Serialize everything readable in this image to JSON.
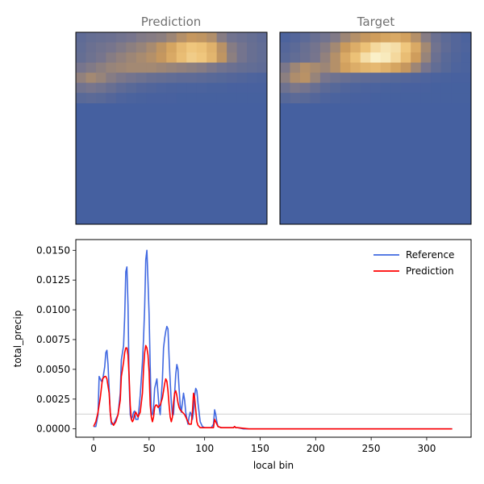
{
  "panels": [
    {
      "title": "Prediction",
      "colormap": "lajolla",
      "grid": [
        [
          0.18,
          0.22,
          0.24,
          0.26,
          0.3,
          0.34,
          0.38,
          0.4,
          0.42,
          0.48,
          0.56,
          0.62,
          0.6,
          0.55,
          0.4,
          0.3,
          0.26,
          0.22,
          0.18
        ],
        [
          0.2,
          0.26,
          0.3,
          0.34,
          0.38,
          0.42,
          0.46,
          0.52,
          0.6,
          0.7,
          0.8,
          0.86,
          0.84,
          0.76,
          0.58,
          0.4,
          0.32,
          0.24,
          0.2
        ],
        [
          0.22,
          0.28,
          0.34,
          0.4,
          0.44,
          0.48,
          0.52,
          0.56,
          0.62,
          0.72,
          0.82,
          0.88,
          0.86,
          0.78,
          0.6,
          0.42,
          0.32,
          0.24,
          0.2
        ],
        [
          0.34,
          0.38,
          0.42,
          0.46,
          0.48,
          0.5,
          0.5,
          0.5,
          0.48,
          0.46,
          0.44,
          0.42,
          0.4,
          0.36,
          0.3,
          0.26,
          0.22,
          0.2,
          0.18
        ],
        [
          0.44,
          0.5,
          0.46,
          0.4,
          0.36,
          0.32,
          0.28,
          0.24,
          0.22,
          0.2,
          0.18,
          0.18,
          0.16,
          0.14,
          0.12,
          0.1,
          0.08,
          0.06,
          0.05
        ],
        [
          0.3,
          0.34,
          0.3,
          0.24,
          0.18,
          0.14,
          0.1,
          0.08,
          0.06,
          0.05,
          0.04,
          0.04,
          0.04,
          0.03,
          0.03,
          0.02,
          0.02,
          0.02,
          0.02
        ],
        [
          0.14,
          0.16,
          0.14,
          0.1,
          0.06,
          0.04,
          0.03,
          0.02,
          0.02,
          0.02,
          0.01,
          0.01,
          0.01,
          0.01,
          0.01,
          0.01,
          0.01,
          0.01,
          0.01
        ]
      ]
    },
    {
      "title": "Target",
      "colormap": "lajolla",
      "grid": [
        [
          0.05,
          0.1,
          0.16,
          0.24,
          0.3,
          0.38,
          0.48,
          0.56,
          0.62,
          0.66,
          0.7,
          0.72,
          0.68,
          0.56,
          0.4,
          0.26,
          0.16,
          0.1,
          0.05
        ],
        [
          0.1,
          0.16,
          0.24,
          0.32,
          0.4,
          0.5,
          0.64,
          0.74,
          0.84,
          0.92,
          0.96,
          0.94,
          0.86,
          0.72,
          0.5,
          0.3,
          0.18,
          0.1,
          0.06
        ],
        [
          0.14,
          0.2,
          0.26,
          0.34,
          0.44,
          0.56,
          0.72,
          0.84,
          0.94,
          1.0,
          0.98,
          0.92,
          0.82,
          0.66,
          0.46,
          0.26,
          0.14,
          0.08,
          0.04
        ],
        [
          0.36,
          0.48,
          0.56,
          0.52,
          0.48,
          0.56,
          0.68,
          0.74,
          0.78,
          0.8,
          0.76,
          0.7,
          0.62,
          0.48,
          0.34,
          0.2,
          0.12,
          0.06,
          0.04
        ],
        [
          0.42,
          0.54,
          0.58,
          0.46,
          0.34,
          0.28,
          0.24,
          0.2,
          0.18,
          0.16,
          0.14,
          0.12,
          0.1,
          0.08,
          0.06,
          0.04,
          0.03,
          0.02,
          0.02
        ],
        [
          0.28,
          0.36,
          0.32,
          0.24,
          0.16,
          0.12,
          0.08,
          0.06,
          0.05,
          0.04,
          0.03,
          0.03,
          0.02,
          0.02,
          0.02,
          0.01,
          0.01,
          0.01,
          0.01
        ],
        [
          0.12,
          0.16,
          0.14,
          0.1,
          0.06,
          0.04,
          0.03,
          0.02,
          0.02,
          0.01,
          0.01,
          0.01,
          0.01,
          0.01,
          0.01,
          0.01,
          0.01,
          0.01,
          0.01
        ]
      ]
    }
  ],
  "chart_data": {
    "type": "line",
    "xlabel": "local bin",
    "ylabel": "total_precip",
    "xlim": [
      -16,
      340
    ],
    "ylim": [
      -0.0007,
      0.0159
    ],
    "xticks": [
      0,
      50,
      100,
      150,
      200,
      250,
      300
    ],
    "yticks": [
      0.0,
      0.0025,
      0.005,
      0.0075,
      0.01,
      0.0125,
      0.015
    ],
    "ytick_labels": [
      "0.0000",
      "0.0025",
      "0.0050",
      "0.0075",
      "0.0100",
      "0.0125",
      "0.0150"
    ],
    "reference_line_y": 0.00125,
    "legend_position": "top-right",
    "grid": false,
    "series": [
      {
        "name": "Reference",
        "color": "#4169E1",
        "x": [
          0,
          2,
          4,
          5,
          7,
          8,
          10,
          11,
          12,
          13,
          14,
          15,
          16,
          18,
          20,
          22,
          24,
          25,
          27,
          28,
          29,
          30,
          31,
          32,
          33,
          34,
          35,
          36,
          37,
          38,
          40,
          42,
          44,
          45,
          46,
          47,
          48,
          49,
          50,
          51,
          52,
          53,
          54,
          55,
          56,
          57,
          58,
          59,
          60,
          62,
          63,
          64,
          65,
          66,
          67,
          68,
          69,
          70,
          71,
          72,
          73,
          74,
          75,
          76,
          77,
          78,
          79,
          80,
          81,
          82,
          83,
          84,
          85,
          86,
          87,
          88,
          89,
          90,
          91,
          92,
          93,
          94,
          96,
          98,
          100,
          102,
          104,
          106,
          108,
          109,
          110,
          111,
          112,
          115,
          120,
          124,
          126,
          127,
          128,
          130,
          135,
          140,
          145,
          150,
          160,
          180,
          200,
          220,
          240,
          260,
          280,
          300,
          323
        ],
        "y": [
          0.0002,
          0.0002,
          0.0012,
          0.0044,
          0.004,
          0.004,
          0.0052,
          0.0064,
          0.0066,
          0.0054,
          0.0034,
          0.0014,
          0.0004,
          0.0004,
          0.0008,
          0.0012,
          0.003,
          0.0058,
          0.007,
          0.0094,
          0.0132,
          0.0136,
          0.0104,
          0.004,
          0.0012,
          0.0008,
          0.001,
          0.0014,
          0.0015,
          0.0008,
          0.0008,
          0.0028,
          0.0056,
          0.0076,
          0.0102,
          0.0142,
          0.015,
          0.0124,
          0.0096,
          0.0052,
          0.0012,
          0.0012,
          0.0018,
          0.0034,
          0.0038,
          0.0042,
          0.003,
          0.0018,
          0.0012,
          0.0042,
          0.0068,
          0.0076,
          0.0082,
          0.0086,
          0.0084,
          0.006,
          0.004,
          0.0022,
          0.0012,
          0.0012,
          0.003,
          0.0046,
          0.0054,
          0.005,
          0.0034,
          0.002,
          0.0014,
          0.0022,
          0.003,
          0.0024,
          0.0014,
          0.0008,
          0.0004,
          0.001,
          0.0014,
          0.0012,
          0.0008,
          0.0014,
          0.0028,
          0.0034,
          0.0032,
          0.0022,
          0.0006,
          0.0002,
          0.0001,
          0.0001,
          0.0001,
          0.0001,
          0.0004,
          0.0016,
          0.0012,
          0.0006,
          0.0002,
          0.0001,
          0.0001,
          0.0001,
          0.0001,
          0.0002,
          0.0001,
          0.0001,
          0.0,
          0.0,
          0.0,
          0.0,
          0.0,
          0.0,
          0.0,
          0.0,
          0.0,
          0.0,
          0.0,
          0.0,
          0.0
        ]
      },
      {
        "name": "Prediction",
        "color": "#FF0000",
        "x": [
          0,
          2,
          4,
          6,
          8,
          10,
          11,
          12,
          14,
          15,
          16,
          18,
          20,
          22,
          24,
          25,
          27,
          28,
          29,
          30,
          31,
          32,
          33,
          34,
          35,
          36,
          37,
          38,
          40,
          42,
          44,
          45,
          46,
          47,
          48,
          49,
          50,
          51,
          52,
          53,
          54,
          55,
          56,
          57,
          58,
          60,
          62,
          63,
          64,
          65,
          66,
          67,
          68,
          69,
          70,
          71,
          72,
          73,
          74,
          75,
          76,
          77,
          78,
          80,
          82,
          84,
          86,
          88,
          89,
          90,
          91,
          92,
          93,
          94,
          96,
          98,
          100,
          104,
          108,
          109,
          110,
          112,
          115,
          120,
          126,
          127,
          128,
          130,
          140,
          150,
          200,
          250,
          300,
          323
        ],
        "y": [
          0.0002,
          0.0006,
          0.0014,
          0.0026,
          0.0042,
          0.0044,
          0.0044,
          0.0042,
          0.003,
          0.0014,
          0.0006,
          0.0003,
          0.0006,
          0.0012,
          0.0024,
          0.0044,
          0.0056,
          0.0064,
          0.0068,
          0.0068,
          0.0062,
          0.0044,
          0.002,
          0.0008,
          0.0006,
          0.0008,
          0.0012,
          0.0014,
          0.001,
          0.0014,
          0.003,
          0.005,
          0.0064,
          0.007,
          0.0068,
          0.0062,
          0.0048,
          0.002,
          0.001,
          0.0006,
          0.001,
          0.0018,
          0.002,
          0.002,
          0.0018,
          0.002,
          0.0026,
          0.0032,
          0.0038,
          0.0042,
          0.004,
          0.0032,
          0.002,
          0.001,
          0.0006,
          0.001,
          0.0022,
          0.003,
          0.0032,
          0.0028,
          0.0022,
          0.0018,
          0.0016,
          0.0014,
          0.0012,
          0.0008,
          0.0004,
          0.0004,
          0.0014,
          0.003,
          0.0026,
          0.0016,
          0.0006,
          0.0003,
          0.0001,
          0.0001,
          0.0001,
          0.0001,
          0.0001,
          0.0008,
          0.0006,
          0.0002,
          0.0001,
          0.0001,
          0.0001,
          0.0002,
          0.0001,
          0.0001,
          0.0,
          0.0,
          0.0,
          0.0,
          0.0,
          0.0
        ]
      }
    ]
  }
}
